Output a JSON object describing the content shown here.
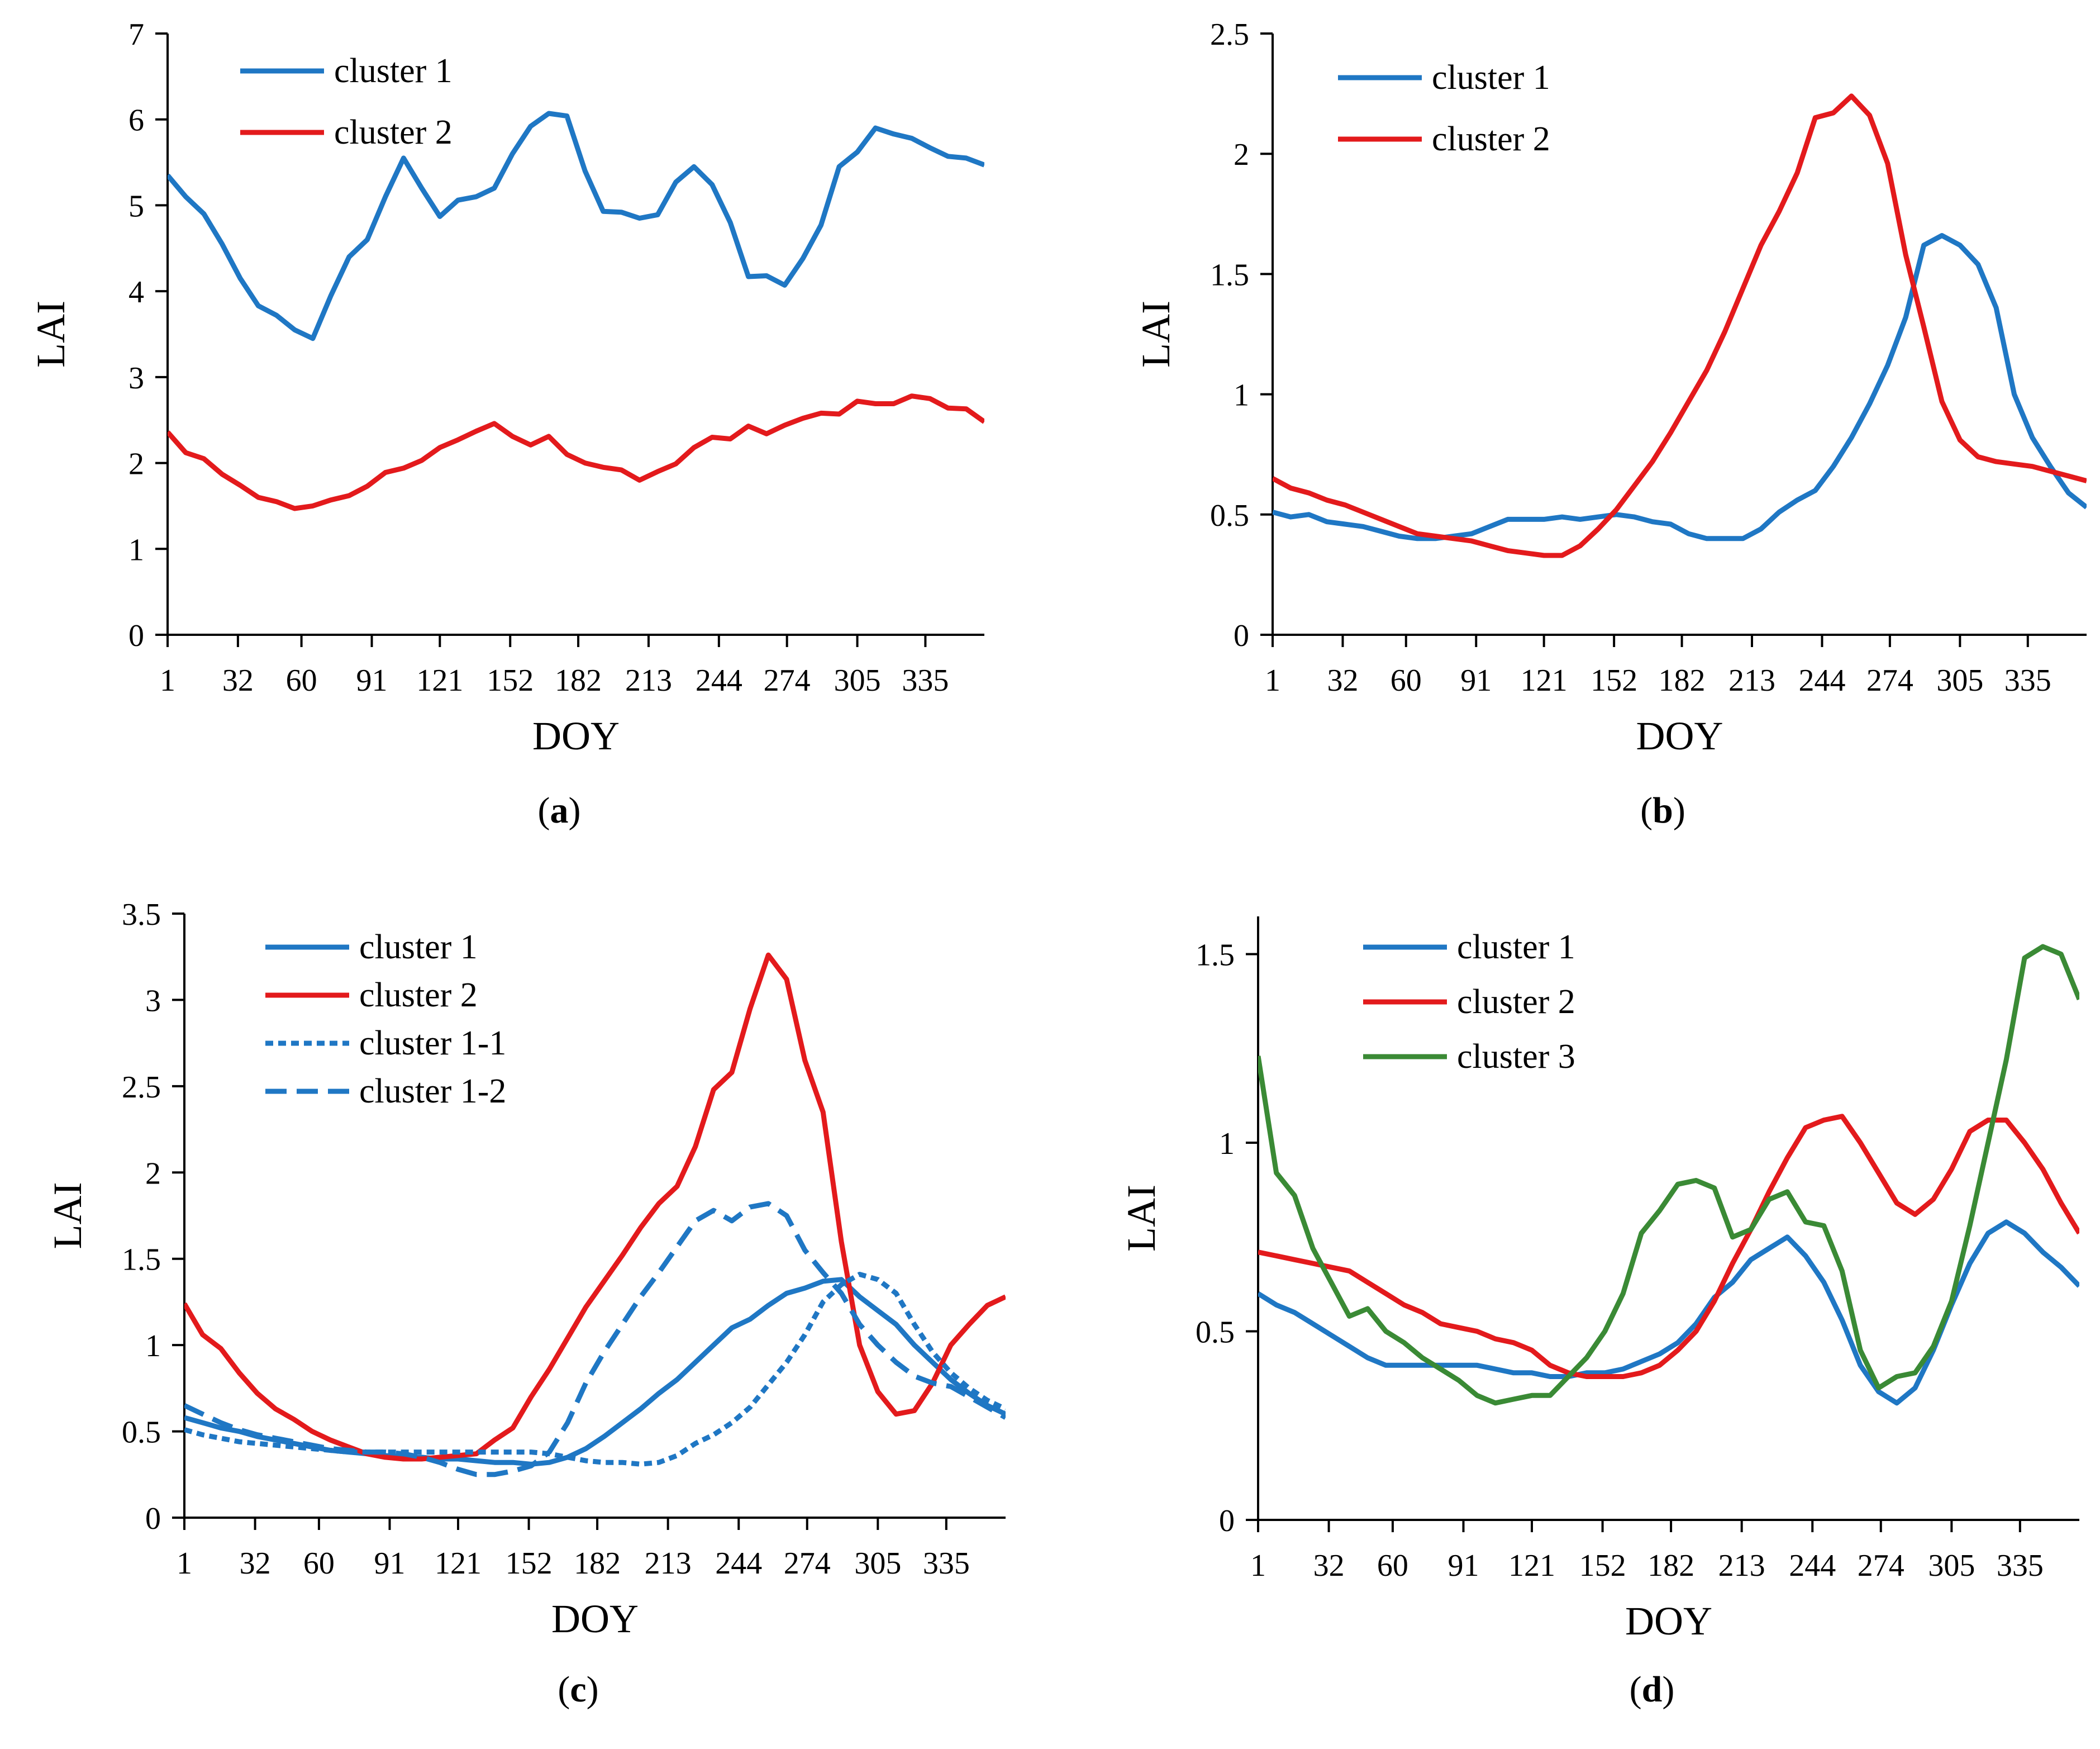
{
  "figure": {
    "x_ticks": [
      "1",
      "32",
      "60",
      "91",
      "121",
      "152",
      "182",
      "213",
      "244",
      "274",
      "305",
      "335"
    ]
  },
  "colors": {
    "blue": "#1f77c4",
    "red": "#e31a1c",
    "green": "#3a8a35"
  },
  "chart_data": [
    {
      "type": "line",
      "panel": "(a)",
      "panel_letter": "a",
      "xlabel": "DOY",
      "ylabel": "LAI",
      "xlim": [
        1,
        361
      ],
      "ylim": [
        0,
        7
      ],
      "yticks": [
        "0",
        "1",
        "2",
        "3",
        "4",
        "5",
        "6",
        "7"
      ],
      "legend": "top-left",
      "x": [
        1,
        9,
        17,
        25,
        33,
        41,
        49,
        57,
        65,
        73,
        81,
        89,
        97,
        105,
        113,
        121,
        129,
        137,
        145,
        153,
        161,
        169,
        177,
        185,
        193,
        201,
        209,
        217,
        225,
        233,
        241,
        249,
        257,
        265,
        273,
        281,
        289,
        297,
        305,
        313,
        321,
        329,
        337,
        345,
        353,
        361
      ],
      "series": [
        {
          "name": "cluster 1",
          "color": "blue",
          "dash": "solid",
          "values": [
            5.35,
            5.1,
            4.9,
            4.55,
            4.15,
            3.83,
            3.72,
            3.55,
            3.45,
            3.95,
            4.4,
            4.6,
            5.1,
            5.55,
            5.2,
            4.87,
            5.06,
            5.1,
            5.2,
            5.6,
            5.92,
            6.07,
            6.04,
            5.4,
            4.93,
            4.92,
            4.85,
            4.89,
            5.27,
            5.45,
            5.24,
            4.8,
            4.17,
            4.18,
            4.07,
            4.38,
            4.77,
            5.45,
            5.62,
            5.9,
            5.83,
            5.78,
            5.67,
            5.57,
            5.55,
            5.47
          ]
        },
        {
          "name": "cluster 2",
          "color": "red",
          "dash": "solid",
          "values": [
            2.36,
            2.12,
            2.05,
            1.87,
            1.74,
            1.6,
            1.55,
            1.47,
            1.5,
            1.57,
            1.62,
            1.73,
            1.89,
            1.94,
            2.03,
            2.18,
            2.27,
            2.37,
            2.46,
            2.31,
            2.21,
            2.31,
            2.1,
            2.0,
            1.95,
            1.92,
            1.8,
            1.9,
            1.99,
            2.18,
            2.3,
            2.28,
            2.43,
            2.34,
            2.44,
            2.52,
            2.58,
            2.57,
            2.72,
            2.69,
            2.69,
            2.78,
            2.75,
            2.64,
            2.63,
            2.48
          ]
        }
      ]
    },
    {
      "type": "line",
      "panel": "(b)",
      "panel_letter": "b",
      "xlabel": "DOY",
      "ylabel": "LAI",
      "xlim": [
        1,
        361
      ],
      "ylim": [
        0,
        2.5
      ],
      "yticks": [
        "0",
        "0.5",
        "1",
        "1.5",
        "2",
        "2.5"
      ],
      "legend": "top-left",
      "x": [
        1,
        9,
        17,
        25,
        33,
        41,
        49,
        57,
        65,
        73,
        81,
        89,
        97,
        105,
        113,
        121,
        129,
        137,
        145,
        153,
        161,
        169,
        177,
        185,
        193,
        201,
        209,
        217,
        225,
        233,
        241,
        249,
        257,
        265,
        273,
        281,
        289,
        297,
        305,
        313,
        321,
        329,
        337,
        345,
        353,
        361
      ],
      "series": [
        {
          "name": "cluster 1",
          "color": "blue",
          "dash": "solid",
          "values": [
            0.51,
            0.49,
            0.5,
            0.47,
            0.46,
            0.45,
            0.43,
            0.41,
            0.4,
            0.4,
            0.41,
            0.42,
            0.45,
            0.48,
            0.48,
            0.48,
            0.49,
            0.48,
            0.49,
            0.5,
            0.49,
            0.47,
            0.46,
            0.42,
            0.4,
            0.4,
            0.4,
            0.44,
            0.51,
            0.56,
            0.6,
            0.7,
            0.82,
            0.96,
            1.12,
            1.32,
            1.62,
            1.66,
            1.62,
            1.54,
            1.36,
            1.0,
            0.82,
            0.7,
            0.59,
            0.53
          ]
        },
        {
          "name": "cluster 2",
          "color": "red",
          "dash": "solid",
          "values": [
            0.65,
            0.61,
            0.59,
            0.56,
            0.54,
            0.51,
            0.48,
            0.45,
            0.42,
            0.41,
            0.4,
            0.39,
            0.37,
            0.35,
            0.34,
            0.33,
            0.33,
            0.37,
            0.44,
            0.52,
            0.62,
            0.72,
            0.84,
            0.97,
            1.1,
            1.26,
            1.44,
            1.62,
            1.76,
            1.92,
            2.15,
            2.17,
            2.24,
            2.16,
            1.96,
            1.58,
            1.28,
            0.97,
            0.81,
            0.74,
            0.72,
            0.71,
            0.7,
            0.68,
            0.66,
            0.64
          ]
        }
      ]
    },
    {
      "type": "line",
      "panel": "(c)",
      "panel_letter": "c",
      "xlabel": "DOY",
      "ylabel": "LAI",
      "xlim": [
        1,
        361
      ],
      "ylim": [
        0,
        3.5
      ],
      "yticks": [
        "0",
        "0.5",
        "1",
        "1.5",
        "2",
        "2.5",
        "3",
        "3.5"
      ],
      "legend": "top-left",
      "x": [
        1,
        9,
        17,
        25,
        33,
        41,
        49,
        57,
        65,
        73,
        81,
        89,
        97,
        105,
        113,
        121,
        129,
        137,
        145,
        153,
        161,
        169,
        177,
        185,
        193,
        201,
        209,
        217,
        225,
        233,
        241,
        249,
        257,
        265,
        273,
        281,
        289,
        297,
        305,
        313,
        321,
        329,
        337,
        345,
        353,
        361
      ],
      "series": [
        {
          "name": "cluster 1",
          "color": "blue",
          "dash": "solid",
          "values": [
            0.58,
            0.55,
            0.52,
            0.5,
            0.47,
            0.45,
            0.43,
            0.41,
            0.39,
            0.38,
            0.37,
            0.36,
            0.35,
            0.35,
            0.34,
            0.34,
            0.33,
            0.32,
            0.32,
            0.31,
            0.32,
            0.35,
            0.4,
            0.47,
            0.55,
            0.63,
            0.72,
            0.8,
            0.9,
            1.0,
            1.1,
            1.15,
            1.23,
            1.3,
            1.33,
            1.37,
            1.38,
            1.28,
            1.2,
            1.12,
            1.0,
            0.9,
            0.8,
            0.72,
            0.65,
            0.6
          ]
        },
        {
          "name": "cluster 2",
          "color": "red",
          "dash": "solid",
          "values": [
            1.24,
            1.06,
            0.98,
            0.84,
            0.72,
            0.63,
            0.57,
            0.5,
            0.45,
            0.41,
            0.37,
            0.35,
            0.34,
            0.34,
            0.35,
            0.36,
            0.37,
            0.45,
            0.52,
            0.7,
            0.86,
            1.04,
            1.22,
            1.37,
            1.52,
            1.68,
            1.82,
            1.92,
            2.15,
            2.48,
            2.58,
            2.95,
            3.26,
            3.12,
            2.65,
            2.35,
            1.6,
            1.0,
            0.73,
            0.6,
            0.62,
            0.78,
            1.0,
            1.12,
            1.23,
            1.28
          ]
        },
        {
          "name": "cluster 1-1",
          "color": "blue",
          "dash": "dotted",
          "values": [
            0.51,
            0.48,
            0.46,
            0.44,
            0.43,
            0.42,
            0.41,
            0.4,
            0.39,
            0.38,
            0.38,
            0.38,
            0.38,
            0.38,
            0.38,
            0.38,
            0.38,
            0.38,
            0.38,
            0.38,
            0.37,
            0.35,
            0.33,
            0.32,
            0.32,
            0.31,
            0.32,
            0.36,
            0.43,
            0.48,
            0.55,
            0.64,
            0.77,
            0.9,
            1.06,
            1.25,
            1.35,
            1.41,
            1.38,
            1.3,
            1.12,
            0.96,
            0.84,
            0.75,
            0.68,
            0.63
          ]
        },
        {
          "name": "cluster 1-2",
          "color": "blue",
          "dash": "dashed",
          "values": [
            0.65,
            0.6,
            0.55,
            0.51,
            0.48,
            0.46,
            0.44,
            0.42,
            0.4,
            0.39,
            0.38,
            0.38,
            0.37,
            0.35,
            0.32,
            0.28,
            0.25,
            0.25,
            0.27,
            0.3,
            0.38,
            0.55,
            0.78,
            0.96,
            1.12,
            1.28,
            1.42,
            1.57,
            1.72,
            1.78,
            1.72,
            1.8,
            1.82,
            1.75,
            1.55,
            1.42,
            1.3,
            1.12,
            1.0,
            0.9,
            0.82,
            0.78,
            0.76,
            0.7,
            0.64,
            0.58
          ]
        }
      ]
    },
    {
      "type": "line",
      "panel": "(d)",
      "panel_letter": "d",
      "xlabel": "DOY",
      "ylabel": "LAI",
      "xlim": [
        1,
        361
      ],
      "ylim": [
        0,
        1.6
      ],
      "yticks": [
        "0",
        "0.5",
        "1",
        "1.5"
      ],
      "legend": "top-left",
      "x": [
        1,
        9,
        17,
        25,
        33,
        41,
        49,
        57,
        65,
        73,
        81,
        89,
        97,
        105,
        113,
        121,
        129,
        137,
        145,
        153,
        161,
        169,
        177,
        185,
        193,
        201,
        209,
        217,
        225,
        233,
        241,
        249,
        257,
        265,
        273,
        281,
        289,
        297,
        305,
        313,
        321,
        329,
        337,
        345,
        353,
        361
      ],
      "series": [
        {
          "name": "cluster 1",
          "color": "blue",
          "dash": "solid",
          "values": [
            0.6,
            0.57,
            0.55,
            0.52,
            0.49,
            0.46,
            0.43,
            0.41,
            0.41,
            0.41,
            0.41,
            0.41,
            0.41,
            0.4,
            0.39,
            0.39,
            0.38,
            0.38,
            0.39,
            0.39,
            0.4,
            0.42,
            0.44,
            0.47,
            0.52,
            0.59,
            0.63,
            0.69,
            0.72,
            0.75,
            0.7,
            0.63,
            0.53,
            0.41,
            0.34,
            0.31,
            0.35,
            0.45,
            0.57,
            0.68,
            0.76,
            0.79,
            0.76,
            0.71,
            0.67,
            0.62
          ]
        },
        {
          "name": "cluster 2",
          "color": "red",
          "dash": "solid",
          "values": [
            0.71,
            0.7,
            0.69,
            0.68,
            0.67,
            0.66,
            0.63,
            0.6,
            0.57,
            0.55,
            0.52,
            0.51,
            0.5,
            0.48,
            0.47,
            0.45,
            0.41,
            0.39,
            0.38,
            0.38,
            0.38,
            0.39,
            0.41,
            0.45,
            0.5,
            0.58,
            0.68,
            0.77,
            0.87,
            0.96,
            1.04,
            1.06,
            1.07,
            1.0,
            0.92,
            0.84,
            0.81,
            0.85,
            0.93,
            1.03,
            1.06,
            1.06,
            1.0,
            0.93,
            0.84,
            0.76
          ]
        },
        {
          "name": "cluster 3",
          "color": "green",
          "dash": "solid",
          "values": [
            1.23,
            0.92,
            0.86,
            0.72,
            0.63,
            0.54,
            0.56,
            0.5,
            0.47,
            0.43,
            0.4,
            0.37,
            0.33,
            0.31,
            0.32,
            0.33,
            0.33,
            0.38,
            0.43,
            0.5,
            0.6,
            0.76,
            0.82,
            0.89,
            0.9,
            0.88,
            0.75,
            0.77,
            0.85,
            0.87,
            0.79,
            0.78,
            0.66,
            0.45,
            0.35,
            0.38,
            0.39,
            0.46,
            0.58,
            0.78,
            1.0,
            1.22,
            1.49,
            1.52,
            1.5,
            1.38
          ]
        }
      ]
    }
  ]
}
